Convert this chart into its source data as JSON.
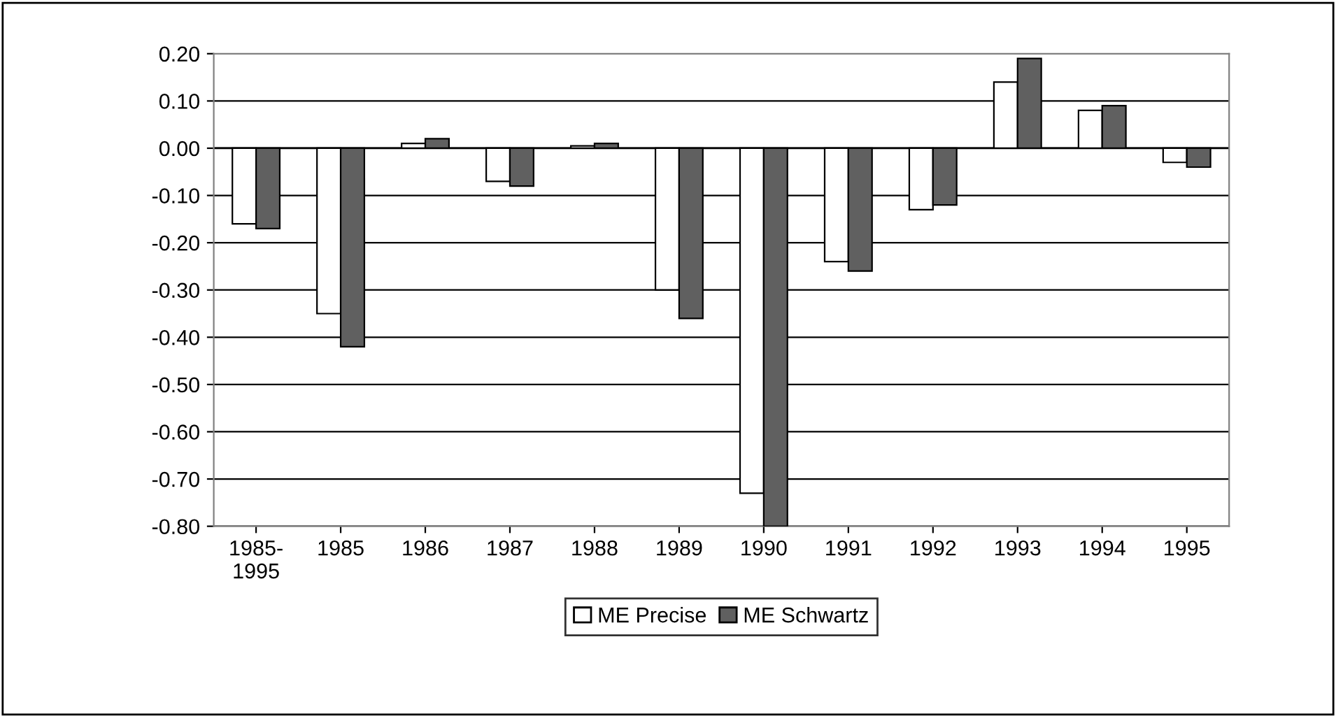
{
  "chart_data": {
    "type": "bar",
    "categories": [
      "1985-\n1995",
      "1985",
      "1986",
      "1987",
      "1988",
      "1989",
      "1990",
      "1991",
      "1992",
      "1993",
      "1994",
      "1995"
    ],
    "series": [
      {
        "name": "ME Precise",
        "color": "#ffffff",
        "values": [
          -0.16,
          -0.35,
          0.01,
          -0.07,
          0.005,
          -0.3,
          -0.73,
          -0.24,
          -0.13,
          0.14,
          0.08,
          -0.03
        ]
      },
      {
        "name": "ME Schwartz",
        "color": "#606060",
        "values": [
          -0.17,
          -0.42,
          0.02,
          -0.08,
          0.01,
          -0.36,
          -0.8,
          -0.26,
          -0.12,
          0.19,
          0.09,
          -0.04
        ]
      }
    ],
    "ylim": [
      -0.8,
      0.2
    ],
    "yticks": [
      {
        "value": -0.8,
        "label": "-0.80"
      },
      {
        "value": -0.7,
        "label": "-0.70"
      },
      {
        "value": -0.6,
        "label": "-0.60"
      },
      {
        "value": -0.5,
        "label": "-0.50"
      },
      {
        "value": -0.4,
        "label": "-0.40"
      },
      {
        "value": -0.3,
        "label": "-0.30"
      },
      {
        "value": -0.2,
        "label": "-0.20"
      },
      {
        "value": -0.1,
        "label": "-0.10"
      },
      {
        "value": 0,
        "label": "0.00"
      },
      {
        "value": 0.1,
        "label": "0.10"
      },
      {
        "value": 0.2,
        "label": "0.20"
      }
    ],
    "grid": "y",
    "legend": "bottom"
  }
}
